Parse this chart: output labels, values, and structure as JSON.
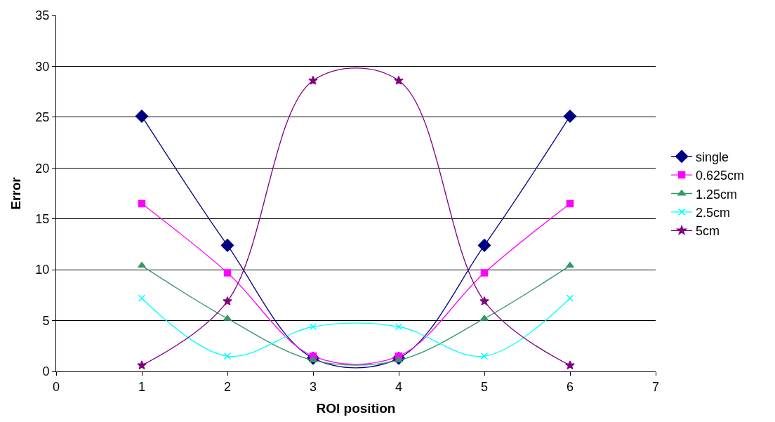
{
  "chart_data": {
    "type": "line",
    "xlabel": "ROI position",
    "ylabel": "Error",
    "x": [
      1,
      2,
      3,
      4,
      5,
      6
    ],
    "xlim": [
      0,
      7
    ],
    "xticks": [
      0,
      1,
      2,
      3,
      4,
      5,
      6,
      7
    ],
    "ylim": [
      0,
      35
    ],
    "yticks": [
      0,
      5,
      10,
      15,
      20,
      25,
      30,
      35
    ],
    "grid": "y",
    "legend": "right",
    "series": [
      {
        "name": "single",
        "color": "#000080",
        "marker": "diamond",
        "values": [
          25.1,
          12.4,
          1.3,
          1.3,
          12.4,
          25.1
        ]
      },
      {
        "name": "0.625cm",
        "color": "#ff00ff",
        "marker": "square",
        "values": [
          16.5,
          9.7,
          1.5,
          1.5,
          9.7,
          16.5
        ]
      },
      {
        "name": "1.25cm",
        "color": "#339966",
        "marker": "triangle",
        "values": [
          10.4,
          5.2,
          1.1,
          1.1,
          5.2,
          10.4
        ]
      },
      {
        "name": "2.5cm",
        "color": "#00ffff",
        "marker": "cross",
        "values": [
          7.2,
          1.5,
          4.4,
          4.4,
          1.5,
          7.2
        ]
      },
      {
        "name": "5cm",
        "color": "#800080",
        "marker": "star",
        "values": [
          0.6,
          6.9,
          28.6,
          28.6,
          6.9,
          0.6
        ]
      }
    ]
  }
}
